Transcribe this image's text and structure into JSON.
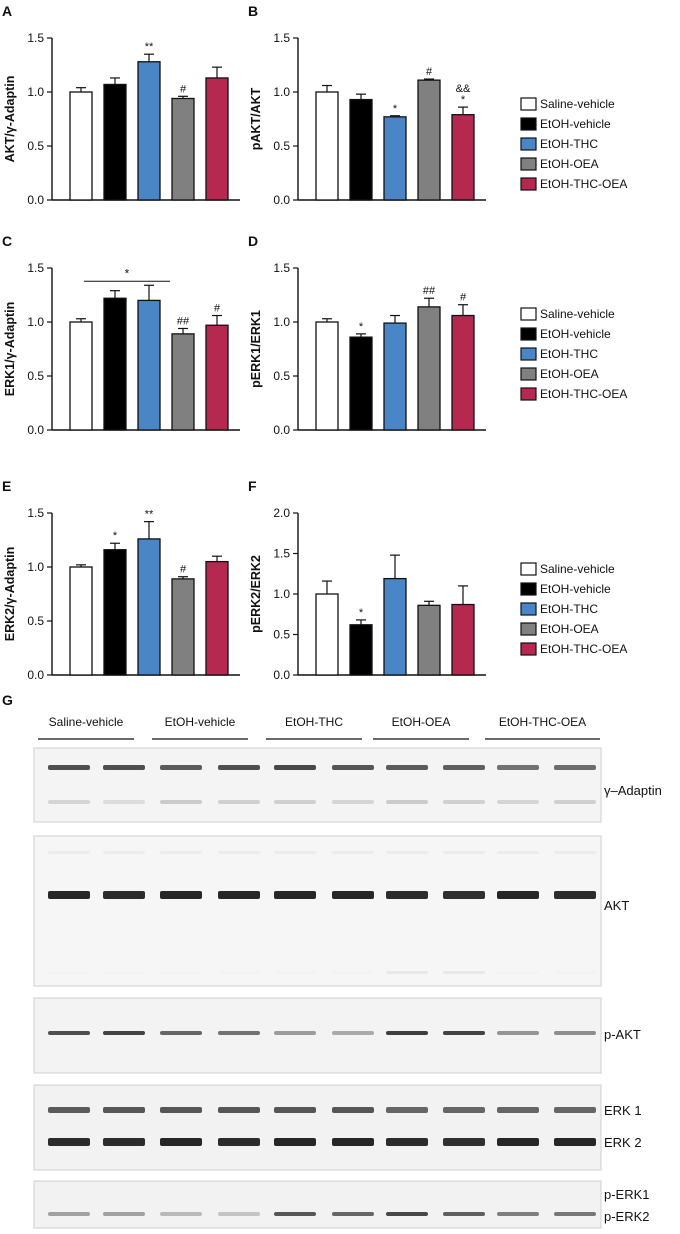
{
  "colors": {
    "Saline-vehicle": "#ffffff",
    "EtOH-vehicle": "#000000",
    "EtOH-THC": "#4a86c5",
    "EtOH-OEA": "#808080",
    "EtOH-THC-OEA": "#b5284f"
  },
  "legend": {
    "entries": [
      "Saline-vehicle",
      "EtOH-vehicle",
      "EtOH-THC",
      "EtOH-OEA",
      "EtOH-THC-OEA"
    ],
    "placement": "right of panels B, D and F"
  },
  "chart_data": [
    {
      "panel": "A",
      "type": "bar",
      "ylabel": "AKT/γ-Adaptin",
      "ylim": [
        0,
        1.5
      ],
      "yticks": [
        "0.0",
        "0.5",
        "1.0",
        "1.5"
      ],
      "categories": [
        "Saline-vehicle",
        "EtOH-vehicle",
        "EtOH-THC",
        "EtOH-OEA",
        "EtOH-THC-OEA"
      ],
      "values": [
        1.0,
        1.07,
        1.28,
        0.94,
        1.13
      ],
      "errors": [
        0.04,
        0.06,
        0.07,
        0.02,
        0.1
      ],
      "annotations": [
        "",
        "",
        "**",
        "#",
        ""
      ]
    },
    {
      "panel": "B",
      "type": "bar",
      "ylabel": "pAKT/AKT",
      "ylim": [
        0,
        1.5
      ],
      "yticks": [
        "0.0",
        "0.5",
        "1.0",
        "1.5"
      ],
      "categories": [
        "Saline-vehicle",
        "EtOH-vehicle",
        "EtOH-THC",
        "EtOH-OEA",
        "EtOH-THC-OEA"
      ],
      "values": [
        1.0,
        0.93,
        0.77,
        1.11,
        0.79
      ],
      "errors": [
        0.06,
        0.05,
        0.01,
        0.01,
        0.07
      ],
      "annotations": [
        "",
        "",
        "*",
        "#",
        "&&\n*"
      ]
    },
    {
      "panel": "C",
      "type": "bar",
      "ylabel": "ERK1/γ-Adaptin",
      "ylim": [
        0,
        1.5
      ],
      "yticks": [
        "0.0",
        "0.5",
        "1.0",
        "1.5"
      ],
      "categories": [
        "Saline-vehicle",
        "EtOH-vehicle",
        "EtOH-THC",
        "EtOH-OEA",
        "EtOH-THC-OEA"
      ],
      "values": [
        1.0,
        1.22,
        1.2,
        0.89,
        0.97
      ],
      "errors": [
        0.03,
        0.07,
        0.14,
        0.05,
        0.09
      ],
      "annotations": [
        "",
        "",
        "",
        "##",
        "#"
      ],
      "bracket": {
        "from": 1,
        "to": 2,
        "label": "*"
      }
    },
    {
      "panel": "D",
      "type": "bar",
      "ylabel": "pERK1/ERK1",
      "ylim": [
        0,
        1.5
      ],
      "yticks": [
        "0.0",
        "0.5",
        "1.0",
        "1.5"
      ],
      "categories": [
        "Saline-vehicle",
        "EtOH-vehicle",
        "EtOH-THC",
        "EtOH-OEA",
        "EtOH-THC-OEA"
      ],
      "values": [
        1.0,
        0.86,
        0.99,
        1.14,
        1.06
      ],
      "errors": [
        0.03,
        0.03,
        0.07,
        0.08,
        0.1
      ],
      "annotations": [
        "",
        "*",
        "",
        "##",
        "#"
      ]
    },
    {
      "panel": "E",
      "type": "bar",
      "ylabel": "ERK2/γ-Adaptin",
      "ylim": [
        0,
        1.5
      ],
      "yticks": [
        "0.0",
        "0.5",
        "1.0",
        "1.5"
      ],
      "categories": [
        "Saline-vehicle",
        "EtOH-vehicle",
        "EtOH-THC",
        "EtOH-OEA",
        "EtOH-THC-OEA"
      ],
      "values": [
        1.0,
        1.16,
        1.26,
        0.89,
        1.05
      ],
      "errors": [
        0.02,
        0.06,
        0.16,
        0.02,
        0.05
      ],
      "annotations": [
        "",
        "*",
        "**",
        "#",
        ""
      ]
    },
    {
      "panel": "F",
      "type": "bar",
      "ylabel": "pERK2/ERK2",
      "ylim": [
        0,
        2.0
      ],
      "yticks": [
        "0.0",
        "0.5",
        "1.0",
        "1.5",
        "2.0"
      ],
      "categories": [
        "Saline-vehicle",
        "EtOH-vehicle",
        "EtOH-THC",
        "EtOH-OEA",
        "EtOH-THC-OEA"
      ],
      "values": [
        1.0,
        0.62,
        1.19,
        0.86,
        0.87
      ],
      "errors": [
        0.16,
        0.06,
        0.29,
        0.05,
        0.23
      ],
      "annotations": [
        "",
        "*",
        "",
        "",
        ""
      ]
    }
  ],
  "blot": {
    "panel": "G",
    "groups": [
      "Saline-vehicle",
      "EtOH-vehicle",
      "EtOH-THC",
      "EtOH-OEA",
      "EtOH-THC-OEA"
    ],
    "strips": [
      {
        "labels": [
          "γ–Adaptin"
        ]
      },
      {
        "labels": [
          "AKT"
        ]
      },
      {
        "labels": [
          "p-AKT"
        ]
      },
      {
        "labels": [
          "ERK 1",
          "ERK 2"
        ]
      },
      {
        "labels": [
          "p-ERK1",
          "p-ERK2"
        ]
      }
    ]
  }
}
